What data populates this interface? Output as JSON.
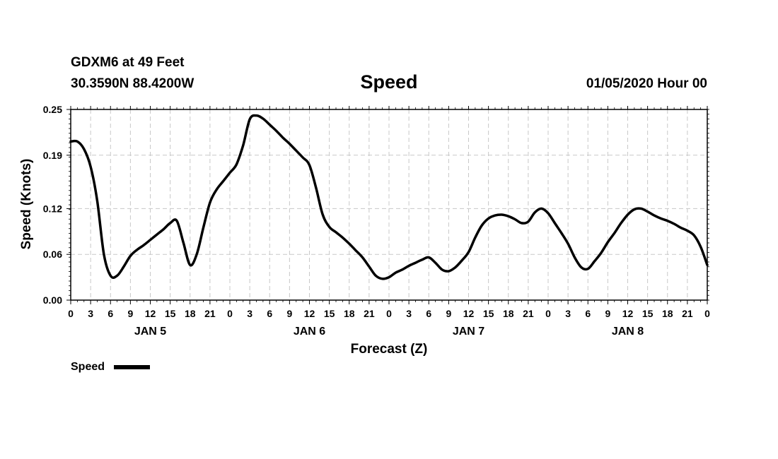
{
  "header": {
    "station": "GDXM6 at 49 Feet",
    "coords": "30.3590N 88.4200W",
    "title": "Speed",
    "date": "01/05/2020 Hour 00"
  },
  "chart_data": {
    "type": "line",
    "title": "Speed",
    "xlabel": "Forecast (Z)",
    "ylabel": "Speed (Knots)",
    "xlim": [
      0,
      96
    ],
    "ylim": [
      0,
      0.25
    ],
    "yticks": [
      0.0,
      0.06,
      0.12,
      0.19,
      0.25
    ],
    "ytick_labels": [
      "0.00",
      "0.06",
      "0.12",
      "0.19",
      "0.25"
    ],
    "xtick_labels": [
      "0",
      "3",
      "6",
      "9",
      "12",
      "15",
      "18",
      "21",
      "0",
      "3",
      "6",
      "9",
      "12",
      "15",
      "18",
      "21",
      "0",
      "3",
      "6",
      "9",
      "12",
      "15",
      "18",
      "21",
      "0",
      "3",
      "6",
      "9",
      "12",
      "15",
      "18",
      "21",
      "0"
    ],
    "day_labels": [
      {
        "label": "JAN 5",
        "hour": 12
      },
      {
        "label": "JAN 6",
        "hour": 36
      },
      {
        "label": "JAN 7",
        "hour": 60
      },
      {
        "label": "JAN 8",
        "hour": 84
      }
    ],
    "grid": true,
    "legend": "bottom-left",
    "series": [
      {
        "name": "Speed",
        "color": "#000000",
        "x": [
          0,
          1,
          2,
          3,
          4,
          5,
          6,
          7,
          8,
          9,
          10,
          11,
          12,
          13,
          14,
          15,
          16,
          17,
          18,
          19,
          20,
          21,
          22,
          23,
          24,
          25,
          26,
          27,
          28,
          29,
          30,
          31,
          32,
          33,
          34,
          35,
          36,
          37,
          38,
          39,
          40,
          41,
          42,
          43,
          44,
          45,
          46,
          47,
          48,
          49,
          50,
          51,
          52,
          53,
          54,
          55,
          56,
          57,
          58,
          59,
          60,
          61,
          62,
          63,
          64,
          65,
          66,
          67,
          68,
          69,
          70,
          71,
          72,
          73,
          74,
          75,
          76,
          77,
          78,
          79,
          80,
          81,
          82,
          83,
          84,
          85,
          86,
          87,
          88,
          89,
          90,
          91,
          92,
          93,
          94,
          95,
          96
        ],
        "values": [
          0.208,
          0.208,
          0.198,
          0.175,
          0.13,
          0.06,
          0.032,
          0.032,
          0.044,
          0.058,
          0.066,
          0.072,
          0.079,
          0.086,
          0.093,
          0.101,
          0.104,
          0.075,
          0.046,
          0.06,
          0.095,
          0.128,
          0.145,
          0.156,
          0.167,
          0.178,
          0.203,
          0.237,
          0.242,
          0.238,
          0.23,
          0.222,
          0.213,
          0.205,
          0.196,
          0.187,
          0.177,
          0.147,
          0.112,
          0.096,
          0.089,
          0.082,
          0.074,
          0.065,
          0.056,
          0.044,
          0.032,
          0.028,
          0.03,
          0.036,
          0.04,
          0.045,
          0.049,
          0.053,
          0.056,
          0.049,
          0.04,
          0.038,
          0.043,
          0.052,
          0.063,
          0.082,
          0.098,
          0.107,
          0.111,
          0.112,
          0.11,
          0.106,
          0.101,
          0.103,
          0.115,
          0.12,
          0.114,
          0.101,
          0.088,
          0.074,
          0.056,
          0.043,
          0.041,
          0.051,
          0.062,
          0.076,
          0.088,
          0.101,
          0.112,
          0.119,
          0.12,
          0.116,
          0.111,
          0.107,
          0.104,
          0.1,
          0.095,
          0.091,
          0.085,
          0.07,
          0.046
        ]
      }
    ]
  }
}
